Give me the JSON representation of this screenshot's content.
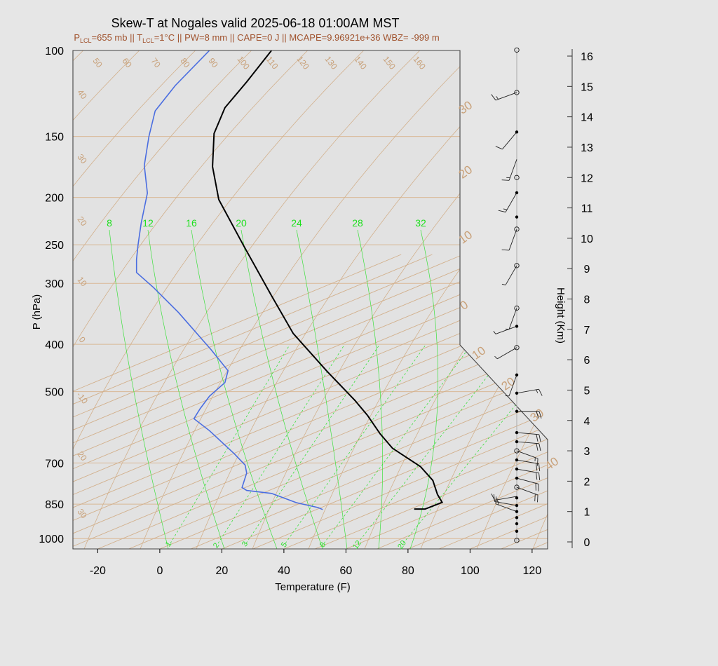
{
  "chart_data": {
    "type": "line",
    "title": "Skew-T at Nogales valid 2025-06-18 01:00AM MST",
    "subtitle": {
      "p_lcl_prefix": "P",
      "p_lcl_sub": "LCL",
      "p_lcl_value": "=655 mb || T",
      "t_lcl_sub": "LCL",
      "rest": "=1°C || PW=8 mm || CAPE=0 J || MCAPE=9.96921e+36 WBZ= -999 m"
    },
    "xlabel": "Temperature (F)",
    "ylabel": "P (hPa)",
    "height_label": "Height (Km)",
    "xlim": [
      -28,
      125
    ],
    "ylim": [
      1050,
      100
    ],
    "x_ticks": [
      "-20",
      "0",
      "20",
      "40",
      "60",
      "80",
      "100",
      "120"
    ],
    "x_tick_values": [
      -20,
      0,
      20,
      40,
      60,
      80,
      100,
      120
    ],
    "p_ticks": [
      "100",
      "150",
      "200",
      "250",
      "300",
      "400",
      "500",
      "700",
      "850",
      "1000"
    ],
    "p_tick_values": [
      100,
      150,
      200,
      250,
      300,
      400,
      500,
      700,
      850,
      1000
    ],
    "height_ticks": [
      "0",
      "1",
      "2",
      "3",
      "4",
      "5",
      "6",
      "7",
      "8",
      "9",
      "10",
      "11",
      "12",
      "13",
      "14",
      "15",
      "16"
    ],
    "isotherm_labels": [
      "50",
      "60",
      "70",
      "80",
      "90",
      "100",
      "110",
      "120",
      "130",
      "140",
      "150",
      "160"
    ],
    "isotherm_left_labels": [
      "40",
      "30",
      "20",
      "10",
      "0",
      "-10",
      "20",
      "30"
    ],
    "dry_adiabat_labels": [
      "30",
      "20",
      "10",
      "0",
      "10",
      "20",
      "30",
      "40"
    ],
    "mixing_ratio_labels": [
      "1",
      "2",
      "3",
      "5",
      "8",
      "12",
      "20"
    ],
    "wet_bulb_labels": [
      "8",
      "12",
      "16",
      "20",
      "24",
      "28",
      "32"
    ],
    "series": [
      {
        "name": "Temperature",
        "color": "#000000",
        "points": [
          [
            82.0,
            870
          ],
          [
            85.5,
            870
          ],
          [
            86.5,
            865
          ],
          [
            91.0,
            843
          ],
          [
            89.5,
            812
          ],
          [
            88.0,
            760
          ],
          [
            84.0,
            712
          ],
          [
            75.0,
            653
          ],
          [
            71.0,
            610
          ],
          [
            67.0,
            560
          ],
          [
            63.0,
            522
          ],
          [
            54.0,
            455
          ],
          [
            43.0,
            380
          ],
          [
            36.0,
            318
          ],
          [
            27.0,
            251
          ],
          [
            19.0,
            202
          ],
          [
            17.0,
            173
          ],
          [
            17.5,
            148
          ],
          [
            21.0,
            131
          ],
          [
            28.0,
            116
          ],
          [
            36.0,
            100
          ]
        ]
      },
      {
        "name": "Dewpoint",
        "color": "#4a6de0",
        "points": [
          [
            52.5,
            872
          ],
          [
            51.0,
            864
          ],
          [
            44.0,
            844
          ],
          [
            36.0,
            808
          ],
          [
            28.0,
            797
          ],
          [
            26.5,
            786
          ],
          [
            28.0,
            734
          ],
          [
            27.5,
            707
          ],
          [
            24.0,
            670
          ],
          [
            16.0,
            601
          ],
          [
            11.0,
            568
          ],
          [
            13.0,
            542
          ],
          [
            16.0,
            511
          ],
          [
            21.0,
            479
          ],
          [
            22.0,
            453
          ],
          [
            16.5,
            410
          ],
          [
            6.0,
            344
          ],
          [
            -2.0,
            306
          ],
          [
            -7.5,
            285
          ],
          [
            -7.5,
            268
          ],
          [
            -7.0,
            250
          ],
          [
            -6.0,
            226
          ],
          [
            -4.0,
            196
          ],
          [
            -5.0,
            172
          ],
          [
            -3.5,
            150
          ],
          [
            -1.5,
            133
          ],
          [
            5.0,
            118
          ],
          [
            16.0,
            100
          ]
        ]
      }
    ],
    "wind_profile": {
      "station_dots_km": [
        0.05,
        0.35,
        0.6,
        0.8,
        1.0,
        1.2,
        1.45,
        1.8,
        2.1,
        2.4,
        2.7,
        3.0,
        3.3,
        3.6,
        4.3,
        4.9,
        5.5,
        6.4,
        7.1,
        7.7,
        9.1,
        10.3,
        10.7,
        11.5,
        12.0,
        13.5,
        14.8,
        16.2
      ],
      "barbs": [
        {
          "km": 1.0,
          "dir": 290,
          "speed": 15
        },
        {
          "km": 1.2,
          "dir": 280,
          "speed": 15
        },
        {
          "km": 1.5,
          "dir": 260,
          "speed": 10
        },
        {
          "km": 1.8,
          "dir": 110,
          "speed": 20
        },
        {
          "km": 2.1,
          "dir": 105,
          "speed": 20
        },
        {
          "km": 2.4,
          "dir": 100,
          "speed": 20
        },
        {
          "km": 2.7,
          "dir": 100,
          "speed": 20
        },
        {
          "km": 3.0,
          "dir": 110,
          "speed": 15
        },
        {
          "km": 3.3,
          "dir": 95,
          "speed": 20
        },
        {
          "km": 3.6,
          "dir": 95,
          "speed": 20
        },
        {
          "km": 4.3,
          "dir": 90,
          "speed": 20
        },
        {
          "km": 4.9,
          "dir": 80,
          "speed": 15
        },
        {
          "km": 5.5,
          "dir": 200,
          "speed": 5
        },
        {
          "km": 6.4,
          "dir": 240,
          "speed": 5
        },
        {
          "km": 7.1,
          "dir": 250,
          "speed": 5
        },
        {
          "km": 7.7,
          "dir": 200,
          "speed": 5
        },
        {
          "km": 9.1,
          "dir": 210,
          "speed": 5
        },
        {
          "km": 10.3,
          "dir": 200,
          "speed": 10
        },
        {
          "km": 11.5,
          "dir": 210,
          "speed": 15
        },
        {
          "km": 12.6,
          "dir": 200,
          "speed": 15
        },
        {
          "km": 13.5,
          "dir": 220,
          "speed": 10
        },
        {
          "km": 14.8,
          "dir": 250,
          "speed": 15
        }
      ]
    },
    "grid": true,
    "legend": "none"
  }
}
